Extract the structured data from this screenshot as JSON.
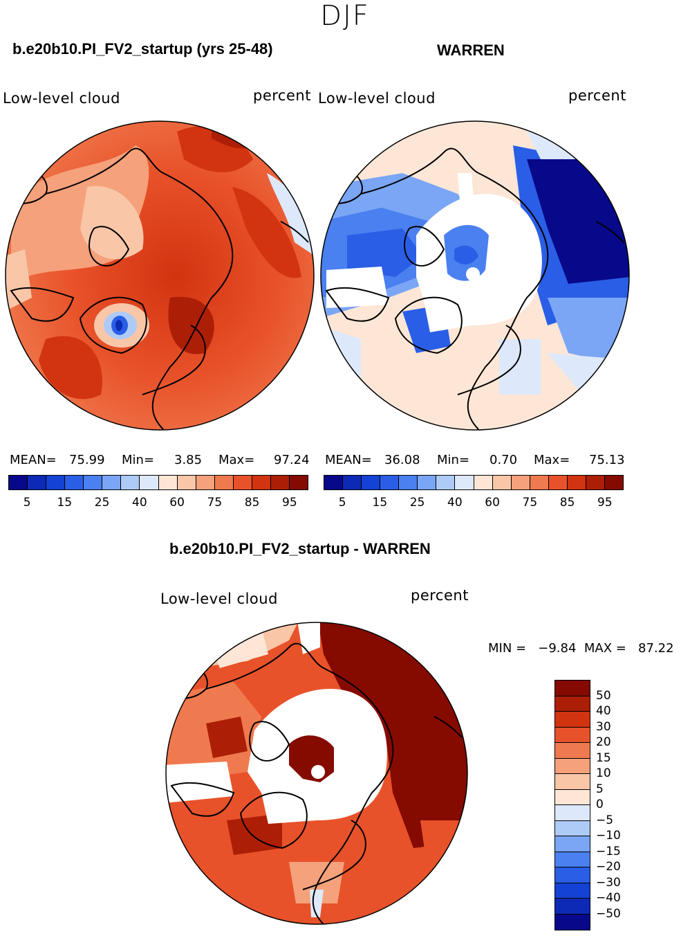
{
  "season": "DJF",
  "panels": {
    "left": {
      "case": "b.e20b10.PI_FV2_startup (yrs 25-48)",
      "variable": "Low-level cloud",
      "units": "percent",
      "mean_label": "MEAN=",
      "mean": "75.99",
      "min_label": "Min=",
      "min": "3.85",
      "max_label": "Max=",
      "max": "97.24"
    },
    "right": {
      "case": "WARREN",
      "variable": "Low-level cloud",
      "units": "percent",
      "mean_label": "MEAN=",
      "mean": "36.08",
      "min_label": "Min=",
      "min": "0.70",
      "max_label": "Max=",
      "max": "75.13"
    },
    "diff": {
      "case": "b.e20b10.PI_FV2_startup - WARREN",
      "variable": "Low-level cloud",
      "units": "percent",
      "minmax": "MIN =   −9.84  MAX =   87.22"
    }
  },
  "colorbar_top": {
    "colors": [
      "#08088a",
      "#0c2ab5",
      "#1442d4",
      "#2a5ee6",
      "#4a80f0",
      "#7aa6f5",
      "#aecbf7",
      "#dde9fb",
      "#fde6d6",
      "#f9c6a8",
      "#f5a17b",
      "#f07a4f",
      "#e8522a",
      "#d23310",
      "#ad1e06",
      "#850a00"
    ],
    "ticks": [
      "5",
      "15",
      "25",
      "40",
      "60",
      "75",
      "85",
      "95"
    ]
  },
  "colorbar_diff": {
    "colors": [
      "#850a00",
      "#ad1e06",
      "#d23310",
      "#e8522a",
      "#f07a4f",
      "#f5a17b",
      "#f9c6a8",
      "#fde6d6",
      "#dde9fb",
      "#aecbf7",
      "#7aa6f5",
      "#4a80f0",
      "#2a5ee6",
      "#1442d4",
      "#0c2ab5",
      "#08088a"
    ],
    "ticks": [
      "50",
      "40",
      "30",
      "20",
      "15",
      "10",
      "5",
      "0",
      "−5",
      "−10",
      "−15",
      "−20",
      "−30",
      "−40",
      "−50"
    ]
  }
}
